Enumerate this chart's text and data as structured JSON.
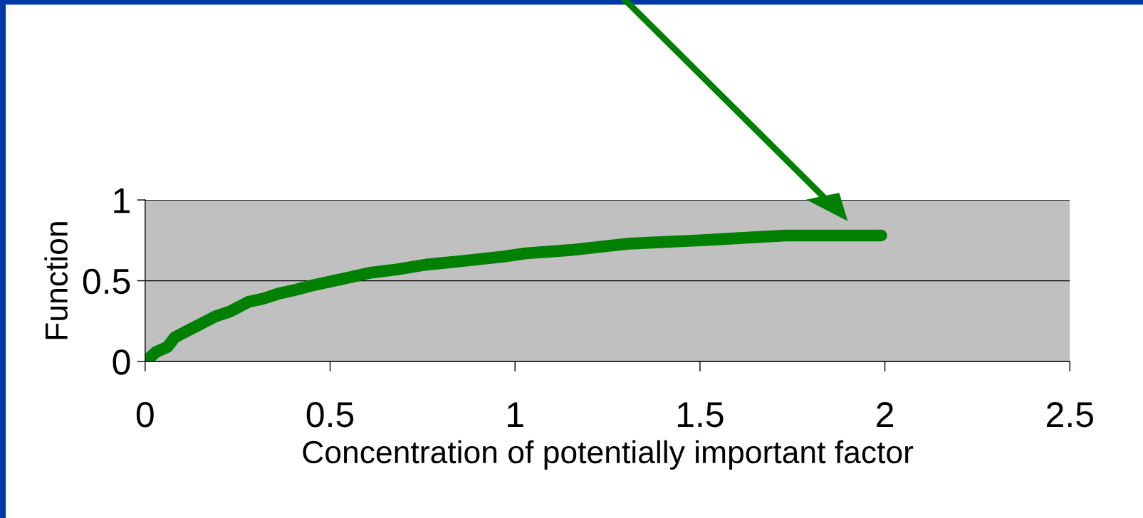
{
  "chart_data": {
    "type": "line",
    "xlabel": "Concentration of potentially important factor",
    "ylabel": "Function",
    "x": [
      0,
      0.03,
      0.06,
      0.08,
      0.19,
      0.23,
      0.28,
      0.32,
      0.36,
      0.4,
      0.45,
      0.49,
      0.55,
      0.61,
      0.68,
      0.76,
      0.85,
      0.97,
      1.03,
      1.15,
      1.31,
      1.5,
      1.73,
      1.99
    ],
    "series": [
      {
        "color": "#008000",
        "values": [
          0,
          0.06,
          0.09,
          0.15,
          0.28,
          0.31,
          0.37,
          0.39,
          0.42,
          0.44,
          0.47,
          0.49,
          0.52,
          0.55,
          0.57,
          0.6,
          0.62,
          0.65,
          0.67,
          0.69,
          0.73,
          0.75,
          0.78,
          0.78
        ]
      }
    ],
    "xlim": [
      0,
      2.5
    ],
    "xticks": [
      0,
      0.5,
      1,
      1.5,
      2,
      2.5
    ],
    "ylim": [
      0,
      1
    ],
    "yticks": [
      0,
      0.5,
      1
    ],
    "grid": "y",
    "marker": "none",
    "line_style": "solid"
  }
}
